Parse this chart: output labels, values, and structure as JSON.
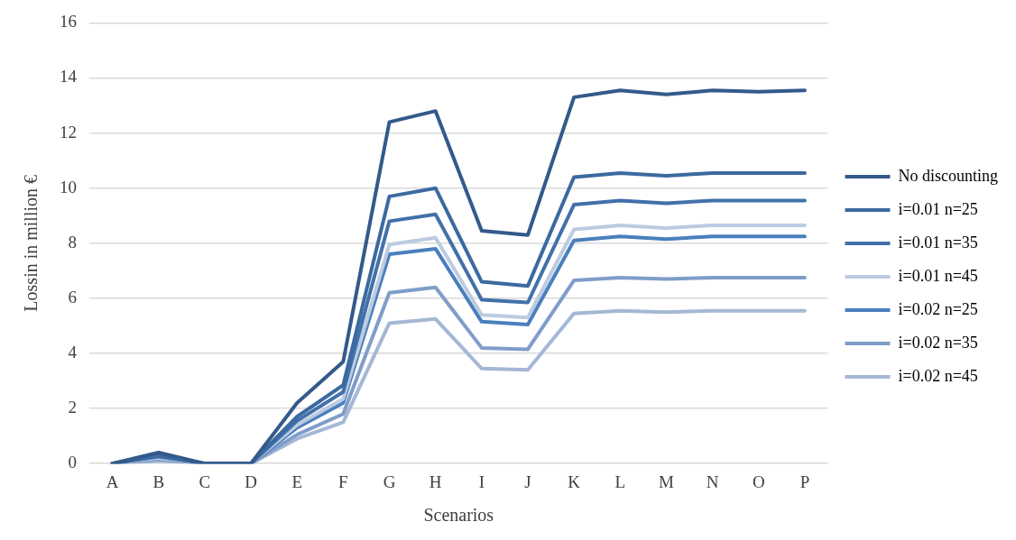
{
  "chart_data": {
    "type": "line",
    "xlabel": "Scenarios",
    "ylabel": "Lossin in million €",
    "categories": [
      "A",
      "B",
      "C",
      "D",
      "E",
      "F",
      "G",
      "H",
      "I",
      "J",
      "K",
      "L",
      "M",
      "N",
      "O",
      "P"
    ],
    "ylim": [
      0,
      16
    ],
    "yticks": [
      0,
      2,
      4,
      6,
      8,
      10,
      12,
      14,
      16
    ],
    "grid": "y",
    "legend": "right",
    "marker": "none",
    "line_style": "solid",
    "series": [
      {
        "name": "No discounting",
        "color": "#335a8a",
        "values": [
          0,
          0.4,
          0,
          0,
          2.2,
          3.7,
          12.4,
          12.8,
          8.45,
          8.3,
          13.3,
          13.55,
          13.4,
          13.55,
          13.5,
          13.55
        ]
      },
      {
        "name": "i=0.01 n=25",
        "color": "#3b6aa0",
        "values": [
          0,
          0.3,
          0,
          0,
          1.7,
          2.85,
          9.7,
          10.0,
          6.6,
          6.45,
          10.4,
          10.55,
          10.45,
          10.55,
          10.55,
          10.55
        ]
      },
      {
        "name": "i=0.01 n=35",
        "color": "#4271aa",
        "values": [
          0,
          0.25,
          0,
          0,
          1.55,
          2.6,
          8.8,
          9.05,
          5.95,
          5.85,
          9.4,
          9.55,
          9.45,
          9.55,
          9.55,
          9.55
        ]
      },
      {
        "name": "i=0.01 n=45",
        "color": "#bccbe0",
        "values": [
          0,
          0.2,
          0,
          0,
          1.4,
          2.35,
          7.95,
          8.2,
          5.4,
          5.3,
          8.5,
          8.65,
          8.55,
          8.65,
          8.65,
          8.65
        ]
      },
      {
        "name": "i=0.02 n=25",
        "color": "#4a7fbd",
        "values": [
          0,
          0.2,
          0,
          0,
          1.3,
          2.2,
          7.6,
          7.8,
          5.15,
          5.05,
          8.1,
          8.25,
          8.15,
          8.25,
          8.25,
          8.25
        ]
      },
      {
        "name": "i=0.02 n=35",
        "color": "#7f9dc9",
        "values": [
          0,
          0.15,
          0,
          0,
          1.05,
          1.8,
          6.2,
          6.4,
          4.2,
          4.15,
          6.65,
          6.75,
          6.7,
          6.75,
          6.75,
          6.75
        ]
      },
      {
        "name": "i=0.02 n=45",
        "color": "#a5b7d6",
        "values": [
          0,
          0.1,
          0,
          0,
          0.9,
          1.5,
          5.1,
          5.25,
          3.45,
          3.4,
          5.45,
          5.55,
          5.5,
          5.55,
          5.55,
          5.55
        ]
      }
    ]
  }
}
